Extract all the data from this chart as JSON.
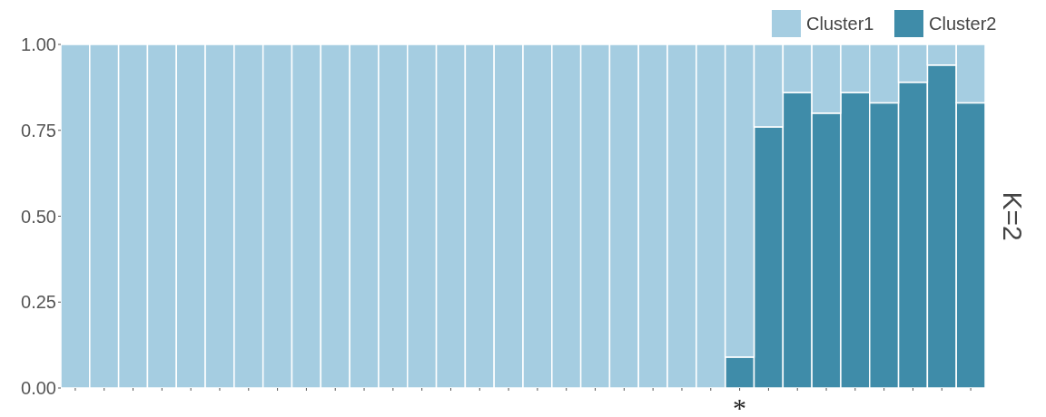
{
  "chart_data": {
    "type": "bar",
    "stacked": true,
    "categories": [
      null,
      null,
      null,
      null,
      null,
      null,
      null,
      null,
      null,
      null,
      null,
      null,
      null,
      null,
      null,
      null,
      null,
      null,
      null,
      null,
      null,
      null,
      null,
      "*",
      null,
      null,
      null,
      null,
      null,
      null,
      null,
      null
    ],
    "series": [
      {
        "name": "Cluster2",
        "color": "#3f8ca9",
        "values": [
          0,
          0,
          0,
          0,
          0,
          0,
          0,
          0,
          0,
          0,
          0,
          0,
          0,
          0,
          0,
          0,
          0,
          0,
          0,
          0,
          0,
          0,
          0,
          0.09,
          0.76,
          0.86,
          0.8,
          0.86,
          0.83,
          0.89,
          0.94,
          0.83
        ]
      },
      {
        "name": "Cluster1",
        "color": "#a5cde1",
        "values": [
          1,
          1,
          1,
          1,
          1,
          1,
          1,
          1,
          1,
          1,
          1,
          1,
          1,
          1,
          1,
          1,
          1,
          1,
          1,
          1,
          1,
          1,
          1,
          0.91,
          0.24,
          0.14,
          0.2,
          0.14,
          0.17,
          0.11,
          0.06,
          0.17
        ]
      }
    ],
    "ylim": [
      0,
      1
    ],
    "yticks": [
      {
        "value": 0,
        "label": "0.00"
      },
      {
        "value": 0.25,
        "label": "0.25"
      },
      {
        "value": 0.5,
        "label": "0.50"
      },
      {
        "value": 0.75,
        "label": "0.75"
      },
      {
        "value": 1,
        "label": "1.00"
      }
    ],
    "legend": "top right",
    "annotations": [
      "K=2"
    ]
  }
}
